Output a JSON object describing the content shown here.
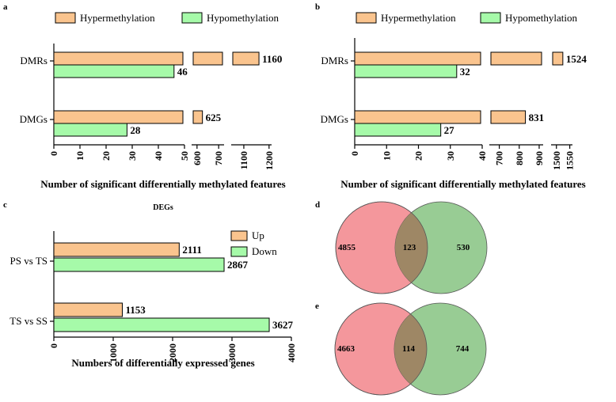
{
  "colors": {
    "orange": "#FAC48E",
    "green": "#A6FAA9",
    "venn_red": "#F4979C",
    "venn_green": "#98CC94",
    "venn_overlap": "#9E8765",
    "edge": "#000000"
  },
  "chart_data": [
    {
      "id": "a",
      "panel": "a",
      "type": "bar",
      "orientation": "horizontal",
      "broken_axis": true,
      "categories": [
        "DMRs",
        "DMGs"
      ],
      "series": [
        {
          "name": "Hypermethylation",
          "color": "#FAC48E",
          "values": [
            1160,
            625
          ]
        },
        {
          "name": "Hypomethylation",
          "color": "#A6FAA9",
          "values": [
            46,
            28
          ]
        }
      ],
      "value_labels": [
        [
          "1160",
          "625"
        ],
        [
          "46",
          "28"
        ]
      ],
      "xlabel": "Number of significant differentially methylated features",
      "segments": [
        {
          "range": [
            0,
            50
          ],
          "ticks": [
            0,
            10,
            20,
            30,
            40,
            50
          ],
          "tick_labels": [
            "0",
            "10",
            "20",
            "30",
            "40",
            "50"
          ]
        },
        {
          "range": [
            575,
            725
          ],
          "ticks": [
            600,
            700
          ],
          "tick_labels": [
            "600",
            "700"
          ]
        },
        {
          "range": [
            1050,
            1210
          ],
          "ticks": [
            1100,
            1200
          ],
          "tick_labels": [
            "1100",
            "1200"
          ]
        }
      ]
    },
    {
      "id": "b",
      "panel": "b",
      "type": "bar",
      "orientation": "horizontal",
      "broken_axis": true,
      "categories": [
        "DMRs",
        "DMGs"
      ],
      "series": [
        {
          "name": "Hypermethylation",
          "color": "#FAC48E",
          "values": [
            1524,
            831
          ]
        },
        {
          "name": "Hypomethylation",
          "color": "#A6FAA9",
          "values": [
            32,
            27
          ]
        }
      ],
      "value_labels": [
        [
          "1524",
          "831"
        ],
        [
          "32",
          "27"
        ]
      ],
      "xlabel": "Number of significant differentially methylated features",
      "segments": [
        {
          "range": [
            0,
            40
          ],
          "ticks": [
            0,
            10,
            20,
            30,
            40
          ],
          "tick_labels": [
            "0",
            "10",
            "20",
            "30",
            "40"
          ]
        },
        {
          "range": [
            650,
            920
          ],
          "ticks": [
            700,
            800,
            900
          ],
          "tick_labels": [
            "700",
            "800",
            "900"
          ]
        },
        {
          "range": [
            1480,
            1560
          ],
          "ticks": [
            1500,
            1550
          ],
          "tick_labels": [
            "1500",
            "1550"
          ]
        }
      ]
    },
    {
      "id": "c",
      "panel": "c",
      "type": "bar",
      "orientation": "horizontal",
      "title": "DEGs",
      "categories": [
        "PS vs TS",
        "TS vs SS"
      ],
      "series": [
        {
          "name": "Up",
          "color": "#FAC48E",
          "values": [
            2111,
            1153
          ]
        },
        {
          "name": "Down",
          "color": "#A6FAA9",
          "values": [
            2867,
            3627
          ]
        }
      ],
      "value_labels": [
        [
          "2111",
          "1153"
        ],
        [
          "2867",
          "3627"
        ]
      ],
      "xlabel": "Numbers of differentially expressed genes",
      "xlim": [
        0,
        4000
      ],
      "ticks": [
        0,
        1000,
        2000,
        3000,
        4000
      ],
      "tick_labels": [
        "0",
        "1000",
        "2000",
        "3000",
        "4000"
      ]
    },
    {
      "id": "d",
      "panel": "d",
      "type": "venn",
      "left_only": 4855,
      "intersection": 123,
      "right_only": 530,
      "labels": [
        "4855",
        "123",
        "530"
      ]
    },
    {
      "id": "e",
      "panel": "e",
      "type": "venn",
      "left_only": 4663,
      "intersection": 114,
      "right_only": 744,
      "labels": [
        "4663",
        "114",
        "744"
      ]
    }
  ]
}
